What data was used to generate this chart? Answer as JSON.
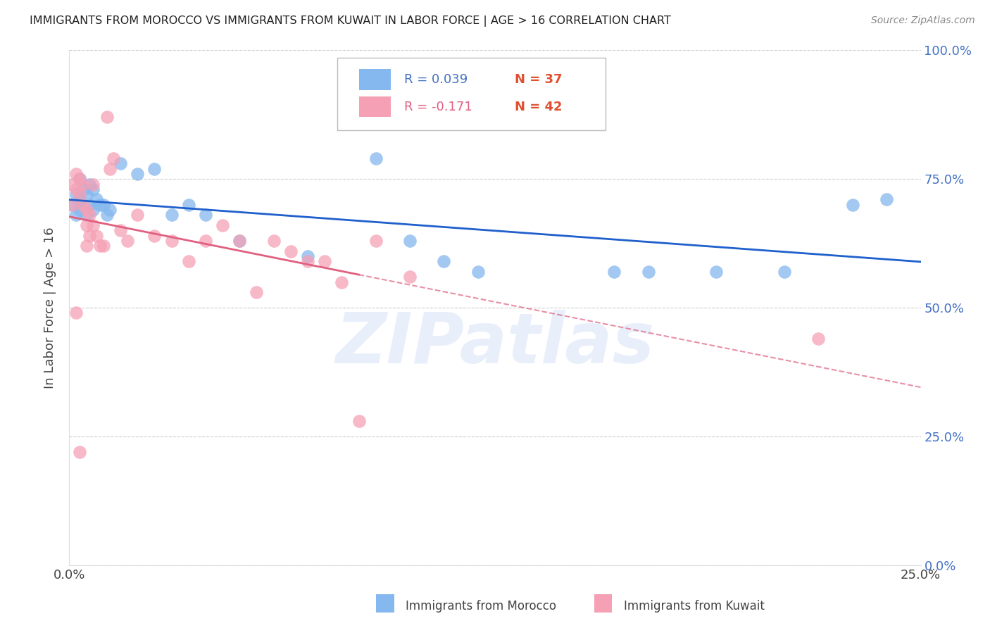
{
  "title": "IMMIGRANTS FROM MOROCCO VS IMMIGRANTS FROM KUWAIT IN LABOR FORCE | AGE > 16 CORRELATION CHART",
  "source": "Source: ZipAtlas.com",
  "ylabel": "In Labor Force | Age > 16",
  "xlim": [
    0.0,
    0.25
  ],
  "ylim": [
    0.0,
    1.0
  ],
  "ytick_values": [
    0.0,
    0.25,
    0.5,
    0.75,
    1.0
  ],
  "xtick_labels": [
    "0.0%",
    "25.0%"
  ],
  "xtick_values": [
    0.0,
    0.25
  ],
  "ytick_right_labels": [
    "0.0%",
    "25.0%",
    "50.0%",
    "75.0%",
    "100.0%"
  ],
  "morocco_color": "#85b8ee",
  "kuwait_color": "#f5a0b5",
  "morocco_R": 0.039,
  "morocco_N": 37,
  "kuwait_R": -0.171,
  "kuwait_N": 42,
  "trend_morocco_color": "#2060cc",
  "trend_kuwait_color": "#e06080",
  "right_axis_color": "#4472c4",
  "watermark": "ZIPatlas",
  "morocco_x": [
    0.001,
    0.002,
    0.002,
    0.003,
    0.003,
    0.003,
    0.004,
    0.004,
    0.005,
    0.005,
    0.006,
    0.006,
    0.007,
    0.007,
    0.008,
    0.009,
    0.01,
    0.011,
    0.012,
    0.015,
    0.02,
    0.025,
    0.03,
    0.035,
    0.04,
    0.05,
    0.07,
    0.09,
    0.1,
    0.11,
    0.12,
    0.16,
    0.17,
    0.19,
    0.21,
    0.23,
    0.24
  ],
  "morocco_y": [
    0.7,
    0.72,
    0.68,
    0.75,
    0.71,
    0.69,
    0.73,
    0.7,
    0.72,
    0.68,
    0.74,
    0.7,
    0.73,
    0.69,
    0.71,
    0.7,
    0.7,
    0.68,
    0.69,
    0.78,
    0.76,
    0.77,
    0.68,
    0.7,
    0.68,
    0.63,
    0.6,
    0.79,
    0.63,
    0.59,
    0.57,
    0.57,
    0.57,
    0.57,
    0.57,
    0.7,
    0.71
  ],
  "kuwait_x": [
    0.001,
    0.001,
    0.002,
    0.002,
    0.003,
    0.003,
    0.004,
    0.004,
    0.005,
    0.005,
    0.005,
    0.006,
    0.006,
    0.007,
    0.007,
    0.008,
    0.009,
    0.01,
    0.011,
    0.012,
    0.013,
    0.015,
    0.017,
    0.02,
    0.025,
    0.03,
    0.035,
    0.04,
    0.045,
    0.05,
    0.055,
    0.06,
    0.065,
    0.07,
    0.075,
    0.08,
    0.09,
    0.1,
    0.002,
    0.003,
    0.085,
    0.22
  ],
  "kuwait_y": [
    0.7,
    0.74,
    0.73,
    0.76,
    0.75,
    0.72,
    0.74,
    0.7,
    0.69,
    0.66,
    0.62,
    0.68,
    0.64,
    0.74,
    0.66,
    0.64,
    0.62,
    0.62,
    0.87,
    0.77,
    0.79,
    0.65,
    0.63,
    0.68,
    0.64,
    0.63,
    0.59,
    0.63,
    0.66,
    0.63,
    0.53,
    0.63,
    0.61,
    0.59,
    0.59,
    0.55,
    0.63,
    0.56,
    0.49,
    0.22,
    0.28,
    0.44
  ],
  "trend_morocco_intercept": 0.695,
  "trend_morocco_slope": 0.05,
  "trend_kuwait_intercept": 0.705,
  "trend_kuwait_slope": -1.05
}
